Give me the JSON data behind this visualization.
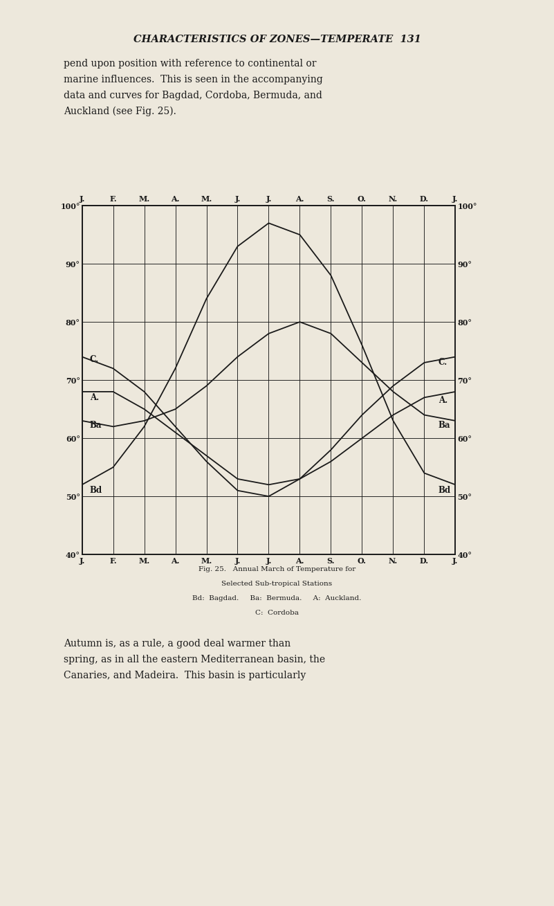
{
  "background_color": "#ede8dc",
  "line_color": "#1a1a1a",
  "months": [
    "J.",
    "F.",
    "M.",
    "A.",
    "M.",
    "J.",
    "J.",
    "A.",
    "S.",
    "O.",
    "N.",
    "D.",
    "J."
  ],
  "yticks": [
    40,
    50,
    60,
    70,
    80,
    90,
    100
  ],
  "ylim": [
    40,
    100
  ],
  "fig_caption_line1": "Fig. 25.   Annual March of Temperature for",
  "fig_caption_line2": "Selected Sub-tropical Stations",
  "fig_caption_line3": "Bd:  Bagdad.     Ba:  Bermuda.     A:  Auckland.",
  "fig_caption_line4": "C:  Cordoba",
  "header": "CHARACTERISTICS OF ZONES—TEMPERATE  131",
  "body_top": [
    "pend upon position with reference to continental or",
    "marine influences.  This is seen in the accompanying",
    "data and curves for Bagdad, Cordoba, Bermuda, and",
    "Auckland (see Fig. 25)."
  ],
  "body_bottom": [
    "Autumn is, as a rule, a good deal warmer than",
    "spring, as in all the eastern Mediterranean basin, the",
    "Canaries, and Madeira.  This basin is particularly"
  ],
  "bagdad": [
    52,
    55,
    62,
    72,
    84,
    93,
    97,
    95,
    88,
    76,
    63,
    54,
    52
  ],
  "cordoba": [
    74,
    72,
    68,
    62,
    56,
    51,
    50,
    53,
    58,
    64,
    69,
    73,
    74
  ],
  "bermuda": [
    63,
    62,
    63,
    65,
    69,
    74,
    78,
    80,
    78,
    73,
    68,
    64,
    63
  ],
  "auckland": [
    68,
    68,
    65,
    61,
    57,
    53,
    52,
    53,
    56,
    60,
    64,
    67,
    68
  ],
  "label_left": {
    "C.": [
      0.25,
      73.5
    ],
    "A.": [
      0.25,
      67.0
    ],
    "Ba": [
      0.25,
      62.2
    ],
    "Bd": [
      0.25,
      51.0
    ]
  },
  "label_right": {
    "C.": [
      11.45,
      73.0
    ],
    "A.": [
      11.45,
      66.5
    ],
    "Ba": [
      11.45,
      62.2
    ],
    "Bd": [
      11.45,
      51.0
    ]
  }
}
